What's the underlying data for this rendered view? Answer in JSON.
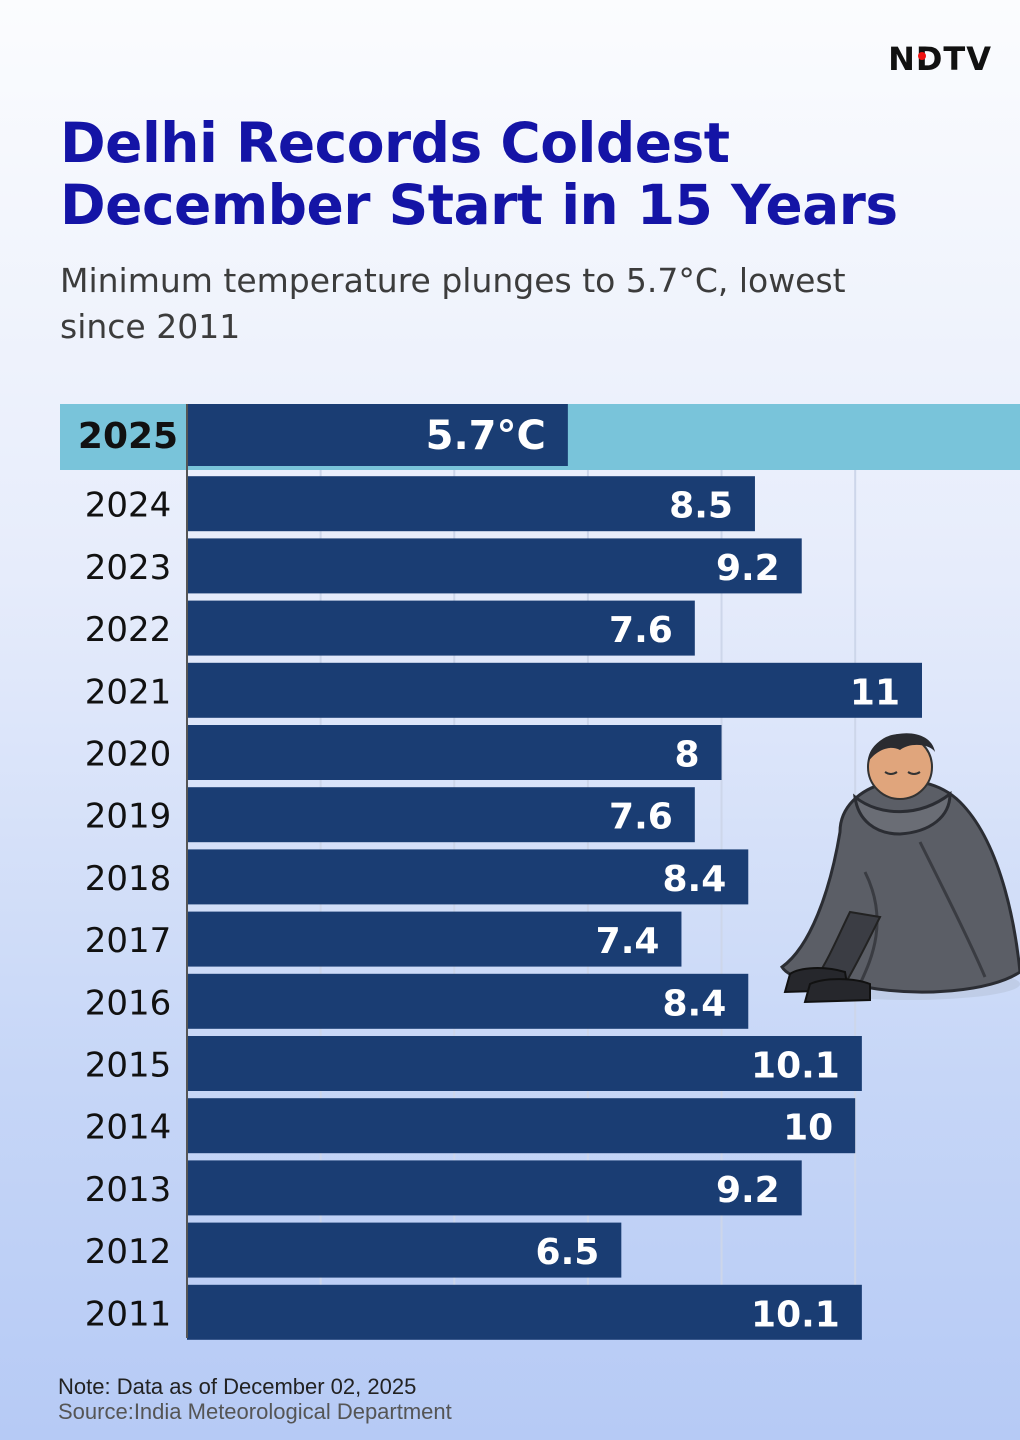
{
  "brand": {
    "name": "NDTV"
  },
  "header": {
    "title": "Delhi Records Coldest December Start in 15 Years",
    "subtitle": "Minimum temperature plunges to 5.7°C, lowest since 2011"
  },
  "footer": {
    "note": "Note: Data as of December 02, 2025",
    "source": "Source:India Meteorological Department"
  },
  "colors": {
    "bar": "#1a3d73",
    "highlight": "#79c4da",
    "title": "#1414a6",
    "label": "#ffffff"
  },
  "chart_data": {
    "type": "bar",
    "orientation": "horizontal",
    "title": "Delhi Records Coldest December Start in 15 Years",
    "categories": [
      "2025",
      "2024",
      "2023",
      "2022",
      "2021",
      "2020",
      "2019",
      "2018",
      "2017",
      "2016",
      "2015",
      "2014",
      "2013",
      "2012",
      "2011"
    ],
    "values": [
      5.7,
      8.5,
      9.2,
      7.6,
      11,
      8,
      7.6,
      8.4,
      7.4,
      8.4,
      10.1,
      10,
      9.2,
      6.5,
      10.1
    ],
    "data_labels": [
      "5.7°C",
      "8.5",
      "9.2",
      "7.6",
      "11",
      "8",
      "7.6",
      "8.4",
      "7.4",
      "8.4",
      "10.1",
      "10",
      "9.2",
      "6.5",
      "10.1"
    ],
    "highlight": "2025",
    "xlim": [
      0,
      11.5
    ],
    "grid": true,
    "legend": "none"
  }
}
